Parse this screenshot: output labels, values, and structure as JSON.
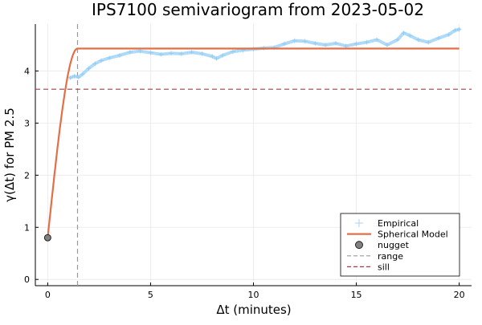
{
  "chart_data": {
    "type": "line",
    "title": "IPS7100 semivariogram from 2023-05-02",
    "xlabel": "Δt (minutes)",
    "ylabel": "γ(Δt) for PM 2.5",
    "xlim": [
      -0.6,
      20.6
    ],
    "ylim": [
      -0.12,
      4.9
    ],
    "xticks": [
      0,
      5,
      10,
      15,
      20
    ],
    "yticks": [
      0,
      1,
      2,
      3,
      4
    ],
    "grid": true,
    "legend_position": "bottom-right",
    "series": [
      {
        "name": "Empirical",
        "kind": "scatter-line",
        "color": "#a6d6f7",
        "x": [
          1.1,
          1.3,
          1.5,
          1.7,
          2.0,
          2.3,
          2.6,
          3.0,
          3.5,
          4.0,
          4.5,
          5.0,
          5.5,
          6.0,
          6.5,
          7.0,
          7.5,
          8.0,
          8.2,
          8.5,
          9.0,
          9.5,
          10.0,
          10.5,
          11.0,
          11.5,
          12.0,
          12.5,
          13.0,
          13.5,
          14.0,
          14.5,
          15.0,
          15.5,
          16.0,
          16.5,
          17.0,
          17.3,
          17.6,
          18.0,
          18.5,
          19.0,
          19.5,
          19.8,
          20.0
        ],
        "y": [
          3.87,
          3.9,
          3.88,
          3.94,
          4.05,
          4.14,
          4.2,
          4.25,
          4.3,
          4.36,
          4.38,
          4.35,
          4.32,
          4.34,
          4.33,
          4.36,
          4.33,
          4.28,
          4.24,
          4.3,
          4.37,
          4.4,
          4.42,
          4.44,
          4.45,
          4.52,
          4.58,
          4.57,
          4.53,
          4.5,
          4.53,
          4.48,
          4.52,
          4.55,
          4.6,
          4.5,
          4.6,
          4.73,
          4.68,
          4.6,
          4.55,
          4.63,
          4.7,
          4.78,
          4.8
        ]
      },
      {
        "name": "Spherical Model",
        "kind": "line",
        "color": "#e26f46",
        "nugget": 0.8,
        "sill": 4.43,
        "range": 1.45,
        "x_max": 20
      },
      {
        "name": "nugget",
        "kind": "point",
        "color": "#808080",
        "x": [
          0
        ],
        "y": [
          0.8
        ]
      },
      {
        "name": "range",
        "kind": "vline-dashed",
        "color": "#999999",
        "x": 1.45
      },
      {
        "name": "sill",
        "kind": "hline-dashed",
        "color": "#a0404a",
        "y": 3.65
      }
    ]
  }
}
